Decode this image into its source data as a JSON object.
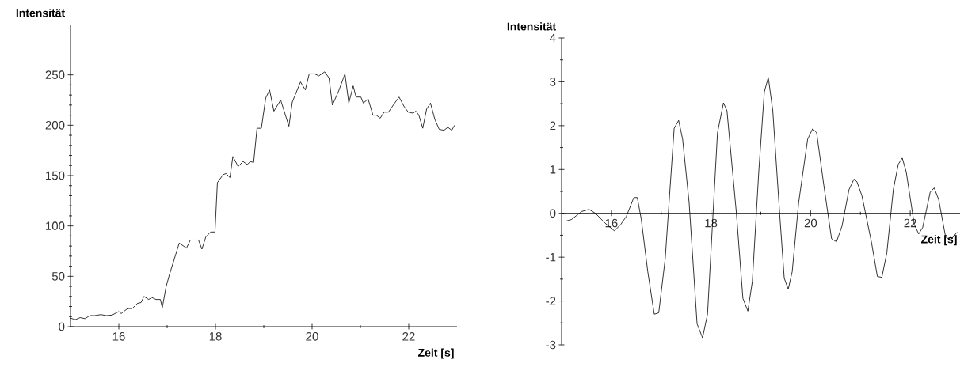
{
  "chart_data": [
    {
      "type": "line",
      "xlabel": "Zeit [s]",
      "ylabel": "Intensität",
      "xlim": [
        15,
        23
      ],
      "ylim": [
        0,
        300
      ],
      "xticks": [
        16,
        18,
        20,
        22
      ],
      "yticks": [
        0,
        50,
        100,
        150,
        200,
        250
      ],
      "grid": false,
      "marker": "none",
      "line_style": "solid",
      "series": [
        {
          "color": "#000000",
          "x": [
            15.0,
            15.1,
            15.2,
            15.3,
            15.4,
            15.5,
            15.63,
            15.74,
            15.86,
            16.0,
            16.05,
            16.18,
            16.28,
            16.38,
            16.46,
            16.52,
            16.62,
            16.68,
            16.77,
            16.86,
            16.9,
            16.98,
            17.05,
            17.25,
            17.4,
            17.48,
            17.65,
            17.72,
            17.8,
            17.9,
            17.99,
            18.04,
            18.16,
            18.22,
            18.3,
            18.36,
            18.47,
            18.57,
            18.66,
            18.72,
            18.79,
            18.86,
            18.95,
            19.04,
            19.12,
            19.21,
            19.35,
            19.52,
            19.59,
            19.76,
            19.86,
            19.94,
            20.05,
            20.14,
            20.26,
            20.35,
            20.42,
            20.55,
            20.68,
            20.76,
            20.85,
            20.91,
            21.01,
            21.06,
            21.16,
            21.26,
            21.33,
            21.41,
            21.49,
            21.58,
            21.71,
            21.8,
            21.9,
            21.99,
            22.09,
            22.15,
            22.21,
            22.29,
            22.37,
            22.45,
            22.54,
            22.63,
            22.73,
            22.81,
            22.89,
            22.95
          ],
          "values": [
            8.5,
            7,
            9,
            8,
            11,
            11,
            12,
            11,
            11.5,
            15,
            13,
            18,
            18,
            23,
            24,
            30,
            27,
            29,
            27,
            27,
            19,
            40,
            52,
            83,
            78,
            86,
            86,
            77,
            89,
            94,
            94,
            143,
            151,
            152,
            148,
            169,
            159,
            164,
            161,
            164,
            163,
            197,
            197,
            227,
            235,
            214,
            225,
            199,
            223,
            243,
            235,
            251,
            251,
            249,
            253,
            247,
            220,
            234,
            251,
            222,
            239,
            228,
            228,
            222,
            226,
            210,
            210,
            207,
            213,
            213,
            222,
            228,
            219,
            213,
            212,
            214,
            210,
            197,
            216,
            222,
            206,
            196,
            195,
            198,
            195,
            200
          ]
        }
      ]
    },
    {
      "type": "line",
      "xlabel": "Zeit [s]",
      "ylabel": "Intensität",
      "xlim": [
        15,
        23
      ],
      "ylim": [
        -3,
        4
      ],
      "xticks": [
        16,
        18,
        20,
        22
      ],
      "yticks": [
        -3,
        -2,
        -1,
        0,
        1,
        2,
        3,
        4
      ],
      "grid": false,
      "marker": "none",
      "line_style": "solid",
      "series": [
        {
          "color": "#000000",
          "x": [
            15.08,
            15.2,
            15.4,
            15.55,
            15.68,
            15.87,
            16.06,
            16.19,
            16.3,
            16.45,
            16.52,
            16.6,
            16.73,
            16.86,
            16.95,
            17.08,
            17.26,
            17.35,
            17.43,
            17.56,
            17.72,
            17.83,
            17.93,
            18.13,
            18.25,
            18.32,
            18.51,
            18.64,
            18.74,
            18.83,
            18.96,
            19.07,
            19.15,
            19.24,
            19.38,
            19.47,
            19.55,
            19.63,
            19.76,
            19.94,
            20.04,
            20.12,
            20.26,
            20.42,
            20.52,
            20.63,
            20.77,
            20.87,
            20.93,
            21.03,
            21.22,
            21.34,
            21.43,
            21.53,
            21.66,
            21.76,
            21.84,
            21.92,
            22.08,
            22.17,
            22.25,
            22.4,
            22.48,
            22.57,
            22.71,
            22.81,
            22.94
          ],
          "values": [
            -0.18,
            -0.14,
            0.04,
            0.09,
            0,
            -0.22,
            -0.4,
            -0.25,
            -0.07,
            0.36,
            0.36,
            -0.14,
            -1.33,
            -2.3,
            -2.27,
            -1.04,
            1.94,
            2.12,
            1.69,
            0.25,
            -2.52,
            -2.84,
            -2.3,
            1.84,
            2.52,
            2.34,
            0,
            -1.94,
            -2.23,
            -1.55,
            0.97,
            2.77,
            3.1,
            2.34,
            -0.04,
            -1.48,
            -1.73,
            -1.33,
            0.25,
            1.69,
            1.93,
            1.84,
            0.68,
            -0.58,
            -0.65,
            -0.29,
            0.54,
            0.78,
            0.72,
            0.4,
            -0.65,
            -1.44,
            -1.46,
            -0.9,
            0.54,
            1.12,
            1.26,
            0.94,
            -0.25,
            -0.47,
            -0.32,
            0.48,
            0.58,
            0.32,
            -0.54,
            -0.61,
            -0.43
          ]
        }
      ]
    }
  ]
}
